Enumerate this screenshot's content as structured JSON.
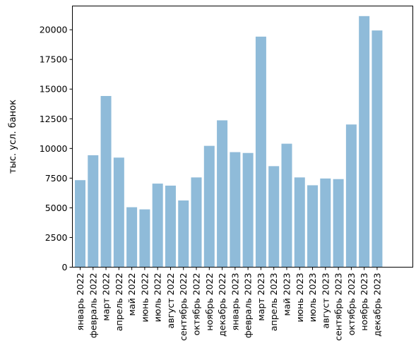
{
  "chart_data": {
    "type": "bar",
    "title": "",
    "xlabel": "",
    "ylabel": "тыс. усл. банок",
    "ylim": [
      0,
      22000
    ],
    "yticks": [
      0,
      2500,
      5000,
      7500,
      10000,
      12500,
      15000,
      17500,
      20000
    ],
    "grid": false,
    "legend": "none",
    "bar_color": "#8fbbd9",
    "categories": [
      "январь 2022",
      "февраль 2022",
      "март 2022",
      "апрель 2022",
      "май 2022",
      "июнь 2022",
      "июль 2022",
      "август 2022",
      "сентябрь 2022",
      "октябрь 2022",
      "ноябрь 2022",
      "декабрь 2022",
      "январь 2023",
      "февраль 2023",
      "март 2023",
      "апрель 2023",
      "май 2023",
      "июнь 2023",
      "июль 2023",
      "август 2023",
      "сентябрь 2023",
      "октябрь 2023",
      "ноябрь 2023",
      "декабрь 2023"
    ],
    "values": [
      7330,
      9430,
      14420,
      9230,
      5050,
      4870,
      7040,
      6870,
      5620,
      7560,
      10220,
      12370,
      9690,
      9620,
      19420,
      8510,
      10400,
      7560,
      6900,
      7470,
      7420,
      12020,
      21150,
      19940
    ]
  }
}
